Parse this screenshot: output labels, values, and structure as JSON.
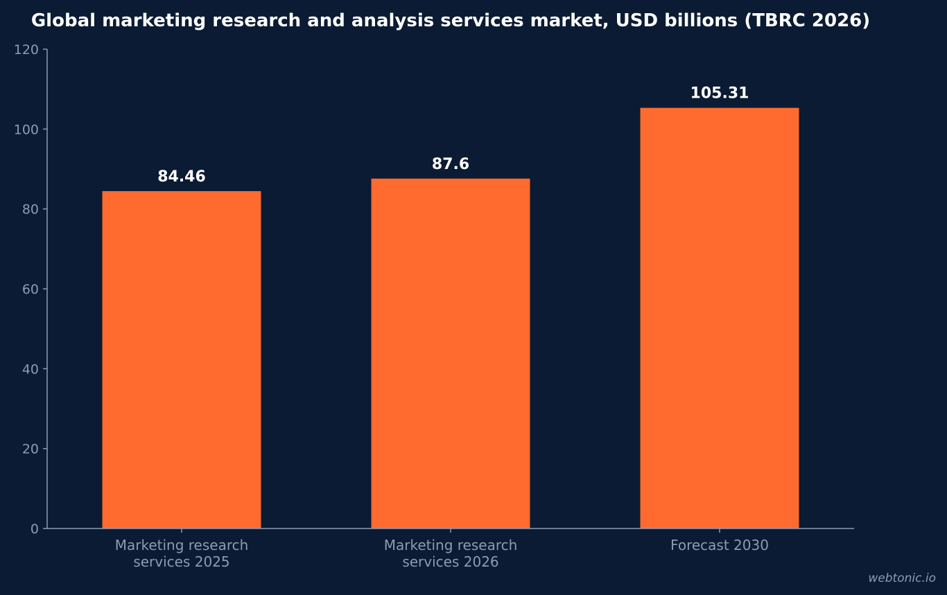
{
  "chart_data": {
    "type": "bar",
    "title": "Global marketing research and analysis services market, USD billions (TBRC 2026)",
    "xlabel": "",
    "ylabel": "",
    "categories": [
      [
        "Marketing research",
        "services 2025"
      ],
      [
        "Marketing research",
        "services 2026"
      ],
      [
        "Forecast 2030"
      ]
    ],
    "values": [
      84.46,
      87.6,
      105.31
    ],
    "value_labels": [
      "84.46",
      "87.6",
      "105.31"
    ],
    "ylim": [
      0,
      120
    ],
    "yticks": [
      0,
      20,
      40,
      60,
      80,
      100,
      120
    ],
    "grid": false,
    "legend": "none",
    "bar_color": "#ff6b2e",
    "background_color": "#0b1b33"
  },
  "watermark": "webtonic.io"
}
